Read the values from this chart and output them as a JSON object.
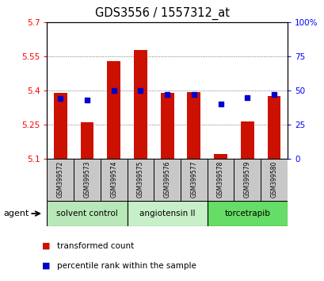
{
  "title": "GDS3556 / 1557312_at",
  "samples": [
    "GSM399572",
    "GSM399573",
    "GSM399574",
    "GSM399575",
    "GSM399576",
    "GSM399577",
    "GSM399578",
    "GSM399579",
    "GSM399580"
  ],
  "red_values": [
    5.39,
    5.26,
    5.53,
    5.58,
    5.39,
    5.395,
    5.12,
    5.265,
    5.375
  ],
  "blue_values": [
    44,
    43,
    50,
    50,
    47,
    47,
    40,
    45,
    47
  ],
  "ylim_left": [
    5.1,
    5.7
  ],
  "ylim_right": [
    0,
    100
  ],
  "yticks_left": [
    5.1,
    5.25,
    5.4,
    5.55,
    5.7
  ],
  "yticks_right": [
    0,
    25,
    50,
    75,
    100
  ],
  "ytick_labels_left": [
    "5.1",
    "5.25",
    "5.4",
    "5.55",
    "5.7"
  ],
  "ytick_labels_right": [
    "0",
    "25",
    "50",
    "75",
    "100%"
  ],
  "groups": [
    {
      "label": "solvent control",
      "start": 0,
      "end": 2,
      "color": "#b8e8b8"
    },
    {
      "label": "angiotensin II",
      "start": 3,
      "end": 5,
      "color": "#c8f0c8"
    },
    {
      "label": "torcetrapib",
      "start": 6,
      "end": 8,
      "color": "#66dd66"
    }
  ],
  "bar_color": "#cc1100",
  "dot_color": "#0000cc",
  "bar_width": 0.5,
  "grid_color": "#555555",
  "agent_label": "agent",
  "legend_red": "transformed count",
  "legend_blue": "percentile rank within the sample",
  "sample_bg": "#c8c8c8",
  "group_bounds": [
    -0.5,
    2.5,
    5.5,
    8.5
  ]
}
